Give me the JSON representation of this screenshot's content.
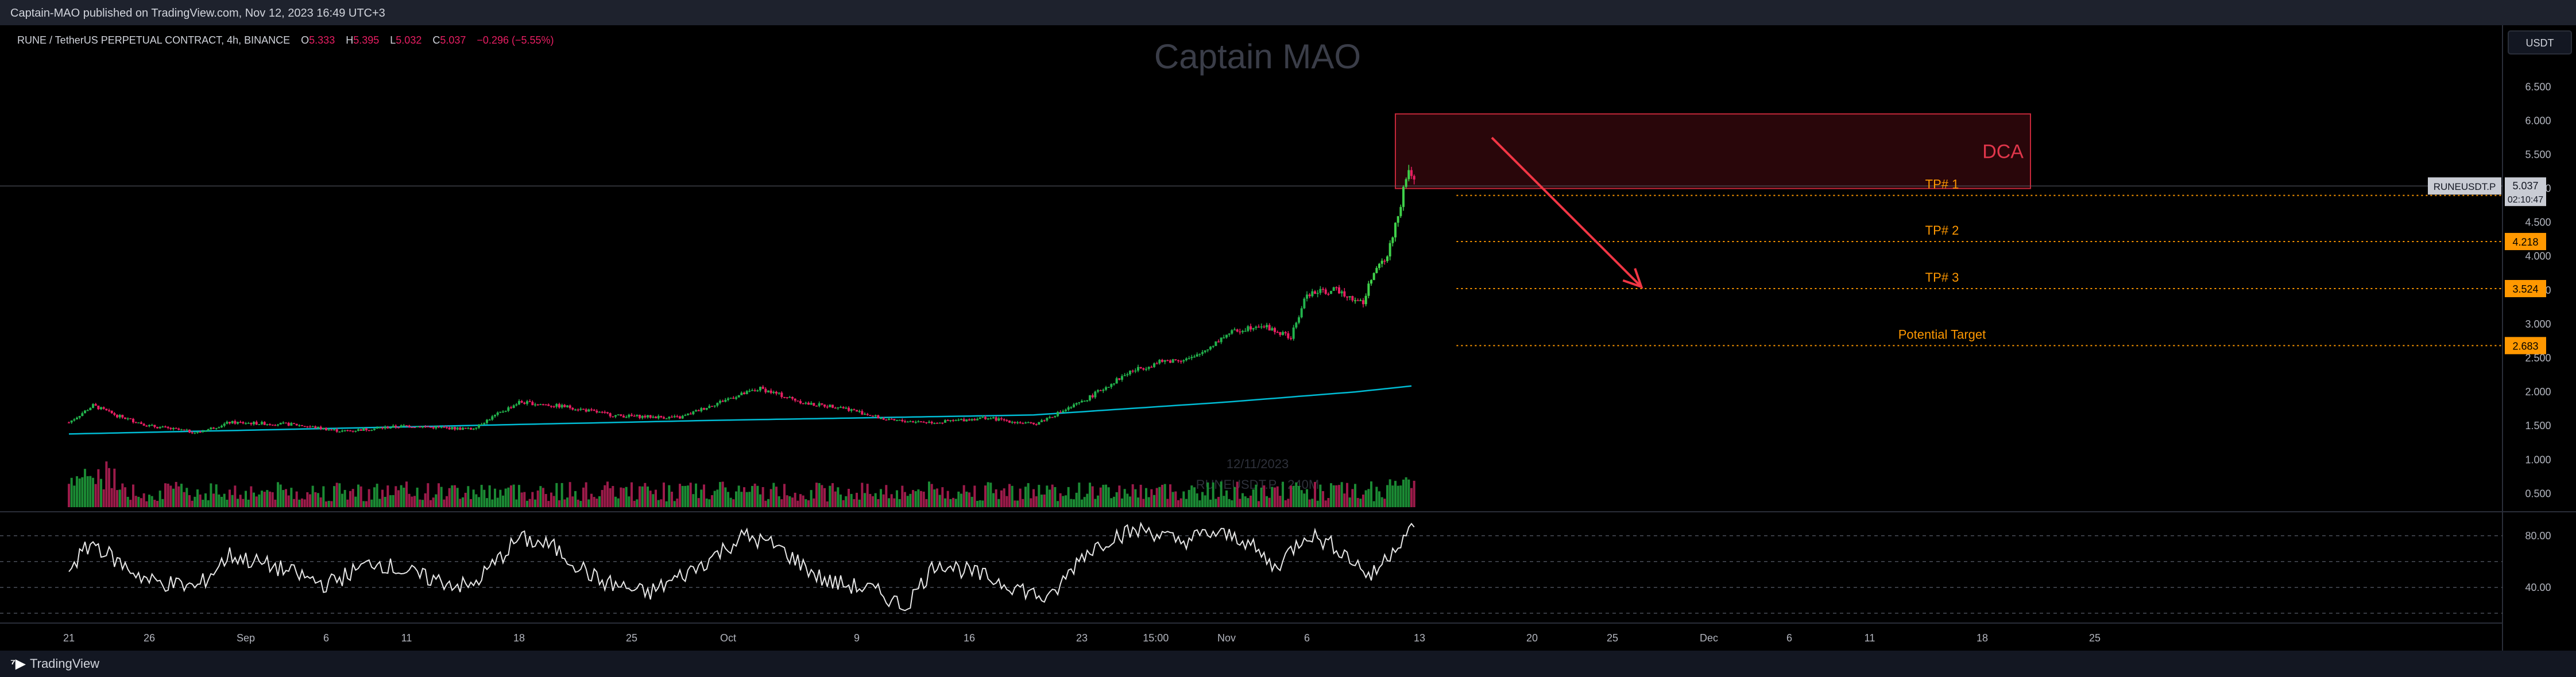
{
  "header": {
    "published_by": "Captain-MAO published on TradingView.com, Nov 12, 2023 16:49 UTC+3",
    "currency_button": "USDT"
  },
  "footer": {
    "brand": "TradingView",
    "brand_icon": "tradingview-logo-icon"
  },
  "symbol_line": {
    "name": "RUNE / TetherUS PERPETUAL CONTRACT, 4h, BINANCE",
    "o_label": "O",
    "o": "5.333",
    "h_label": "H",
    "h": "5.395",
    "l_label": "L",
    "l": "5.032",
    "c_label": "C",
    "c": "5.037",
    "change": "−0.296 (−5.55%)"
  },
  "watermark": {
    "title": "Captain MAO",
    "date": "12/11/2023",
    "symbol_vol": "RUNEUSDT.P ⋅ 240M"
  },
  "colors": {
    "up": "#26a69a",
    "up_bright": "#3fd14a",
    "down": "#e91e63",
    "ema": "#00bcd4",
    "orange": "#ff9800",
    "zone_fill": "#4a0b12",
    "zone_border": "#c6283a"
  },
  "chart_data": {
    "type": "candlestick",
    "symbol": "RUNEUSDT.P",
    "timeframe": "4h",
    "y_axis_labels": [
      "6.500",
      "6.000",
      "5.500",
      "5.000",
      "4.500",
      "4.000",
      "3.500",
      "3.000",
      "2.500",
      "2.000",
      "1.500",
      "1.000",
      "0.500"
    ],
    "ylim": [
      0.3,
      6.9
    ],
    "x_axis_labels": [
      {
        "label": "21",
        "day": 0
      },
      {
        "label": "26",
        "day": 5
      },
      {
        "label": "Sep",
        "day": 11
      },
      {
        "label": "6",
        "day": 16
      },
      {
        "label": "11",
        "day": 21
      },
      {
        "label": "18",
        "day": 28
      },
      {
        "label": "25",
        "day": 35
      },
      {
        "label": "Oct",
        "day": 41
      },
      {
        "label": "9",
        "day": 49
      },
      {
        "label": "16",
        "day": 56
      },
      {
        "label": "23",
        "day": 63
      },
      {
        "label": "15:00",
        "day": 67.6
      },
      {
        "label": "Nov",
        "day": 72
      },
      {
        "label": "6",
        "day": 77
      },
      {
        "label": "13",
        "day": 84
      },
      {
        "label": "20",
        "day": 91
      },
      {
        "label": "25",
        "day": 96
      },
      {
        "label": "Dec",
        "day": 102
      },
      {
        "label": "6",
        "day": 107
      },
      {
        "label": "11",
        "day": 112
      },
      {
        "label": "18",
        "day": 119
      },
      {
        "label": "25",
        "day": 126
      }
    ],
    "price_path": [
      {
        "day": 0,
        "price": 1.55
      },
      {
        "day": 1.5,
        "price": 1.8
      },
      {
        "day": 3,
        "price": 1.65
      },
      {
        "day": 5,
        "price": 1.5
      },
      {
        "day": 8,
        "price": 1.4
      },
      {
        "day": 10,
        "price": 1.55
      },
      {
        "day": 14,
        "price": 1.52
      },
      {
        "day": 17,
        "price": 1.42
      },
      {
        "day": 21,
        "price": 1.5
      },
      {
        "day": 25,
        "price": 1.45
      },
      {
        "day": 28,
        "price": 1.85
      },
      {
        "day": 31,
        "price": 1.78
      },
      {
        "day": 34,
        "price": 1.65
      },
      {
        "day": 38,
        "price": 1.62
      },
      {
        "day": 41,
        "price": 1.9
      },
      {
        "day": 43,
        "price": 2.05
      },
      {
        "day": 46,
        "price": 1.82
      },
      {
        "day": 48,
        "price": 1.78
      },
      {
        "day": 51,
        "price": 1.58
      },
      {
        "day": 54,
        "price": 1.55
      },
      {
        "day": 57,
        "price": 1.62
      },
      {
        "day": 60,
        "price": 1.52
      },
      {
        "day": 63,
        "price": 1.85
      },
      {
        "day": 66,
        "price": 2.3
      },
      {
        "day": 68,
        "price": 2.45
      },
      {
        "day": 70,
        "price": 2.5
      },
      {
        "day": 72,
        "price": 2.85
      },
      {
        "day": 74,
        "price": 3.0
      },
      {
        "day": 76,
        "price": 2.8
      },
      {
        "day": 77,
        "price": 3.45
      },
      {
        "day": 79,
        "price": 3.5
      },
      {
        "day": 80.5,
        "price": 3.3
      },
      {
        "day": 81,
        "price": 3.7
      },
      {
        "day": 82,
        "price": 4.0
      },
      {
        "day": 83,
        "price": 4.95
      },
      {
        "day": 83.4,
        "price": 5.33
      },
      {
        "day": 83.7,
        "price": 5.037
      }
    ],
    "last_price": "5.037",
    "last_price_tag": "RUNEUSDT.P",
    "countdown": "02:10:47",
    "ema_path": [
      {
        "day": 0,
        "price": 1.38
      },
      {
        "day": 20,
        "price": 1.48
      },
      {
        "day": 40,
        "price": 1.58
      },
      {
        "day": 60,
        "price": 1.66
      },
      {
        "day": 72,
        "price": 1.85
      },
      {
        "day": 80,
        "price": 2.0
      },
      {
        "day": 84,
        "price": 2.1
      }
    ],
    "dca_zone": {
      "label": "DCA",
      "from_day": 82.5,
      "to_day": 122,
      "top": 6.1,
      "bottom": 5.0
    },
    "targets": [
      {
        "label": "TP# 1",
        "price": 4.898,
        "price_label": "4.898"
      },
      {
        "label": "TP# 2",
        "price": 4.218,
        "price_label": "4.218"
      },
      {
        "label": "TP# 3",
        "price": 3.524,
        "price_label": "3.524"
      },
      {
        "label": "Potential Target",
        "price": 2.683,
        "price_label": "2.683"
      }
    ],
    "arrow": {
      "from_day": 88.5,
      "from_price": 5.75,
      "to_day": 97.8,
      "to_price": 3.55
    },
    "rsi": {
      "y_axis_labels": [
        "80.00",
        "40.00"
      ],
      "levels": [
        80,
        60,
        40,
        20
      ],
      "ylim": [
        15,
        95
      ],
      "path": [
        {
          "day": 0,
          "value": 55
        },
        {
          "day": 1.5,
          "value": 75
        },
        {
          "day": 3,
          "value": 60
        },
        {
          "day": 5,
          "value": 45
        },
        {
          "day": 8,
          "value": 40
        },
        {
          "day": 10,
          "value": 65
        },
        {
          "day": 13,
          "value": 55
        },
        {
          "day": 16,
          "value": 42
        },
        {
          "day": 19,
          "value": 60
        },
        {
          "day": 22,
          "value": 48
        },
        {
          "day": 25,
          "value": 40
        },
        {
          "day": 28,
          "value": 78
        },
        {
          "day": 30,
          "value": 72
        },
        {
          "day": 33,
          "value": 45
        },
        {
          "day": 36,
          "value": 35
        },
        {
          "day": 39,
          "value": 55
        },
        {
          "day": 42,
          "value": 80
        },
        {
          "day": 44,
          "value": 72
        },
        {
          "day": 47,
          "value": 45
        },
        {
          "day": 50,
          "value": 38
        },
        {
          "day": 52,
          "value": 25
        },
        {
          "day": 54,
          "value": 60
        },
        {
          "day": 57,
          "value": 48
        },
        {
          "day": 59,
          "value": 40
        },
        {
          "day": 61,
          "value": 30
        },
        {
          "day": 63,
          "value": 65
        },
        {
          "day": 65,
          "value": 80
        },
        {
          "day": 67,
          "value": 85
        },
        {
          "day": 69,
          "value": 75
        },
        {
          "day": 71,
          "value": 82
        },
        {
          "day": 73,
          "value": 78
        },
        {
          "day": 75,
          "value": 55
        },
        {
          "day": 77,
          "value": 82
        },
        {
          "day": 79,
          "value": 70
        },
        {
          "day": 81,
          "value": 48
        },
        {
          "day": 82.5,
          "value": 72
        },
        {
          "day": 83.4,
          "value": 86
        },
        {
          "day": 83.8,
          "value": 80
        }
      ]
    }
  }
}
